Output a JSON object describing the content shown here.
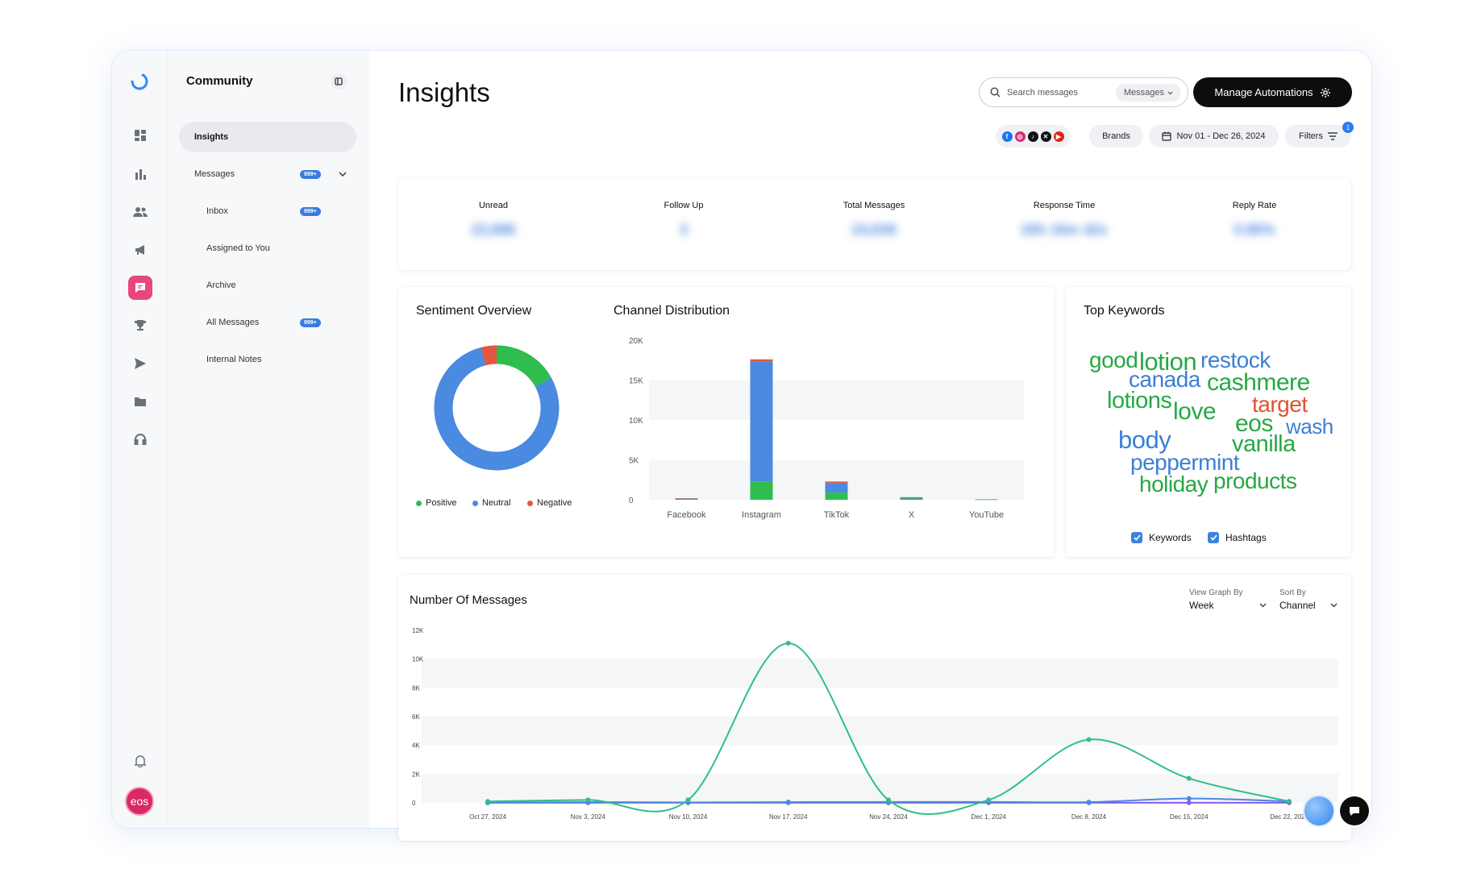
{
  "sidebar": {
    "title": "Community",
    "items": [
      {
        "label": "Insights",
        "active": true
      },
      {
        "label": "Messages",
        "badge": "999+"
      },
      {
        "label": "Inbox",
        "badge": "999+"
      },
      {
        "label": "Assigned to You"
      },
      {
        "label": "Archive"
      },
      {
        "label": "All Messages",
        "badge": "999+"
      },
      {
        "label": "Internal Notes"
      }
    ]
  },
  "rail": {
    "icons": [
      "dashboard-icon",
      "bar-chart-icon",
      "users-icon",
      "megaphone-icon",
      "chat-icon",
      "trophy-icon",
      "send-icon",
      "folder-icon",
      "headset-icon",
      "bell-icon"
    ],
    "avatar_text": "eos",
    "active_color": "#e8477a"
  },
  "header": {
    "title": "Insights",
    "search_placeholder": "Search messages",
    "search_scope": "Messages",
    "manage_label": "Manage Automations",
    "brands_label": "Brands",
    "date_range": "Nov 01 - Dec 26, 2024",
    "filters_label": "Filters",
    "filters_count": "1"
  },
  "stats": [
    {
      "label": "Unread",
      "value": "23,896"
    },
    {
      "label": "Follow Up",
      "value": "3"
    },
    {
      "label": "Total Messages",
      "value": "24,638"
    },
    {
      "label": "Response Time",
      "value": "20h 16m 42s"
    },
    {
      "label": "Reply Rate",
      "value": "0.86%"
    }
  ],
  "sentiment": {
    "title": "Sentiment Overview",
    "legend": [
      "Positive",
      "Neutral",
      "Negative"
    ],
    "colors": {
      "positive": "#2ebd4e",
      "neutral": "#4a8ae0",
      "negative": "#e4553b"
    }
  },
  "channel": {
    "title": "Channel Distribution",
    "y_ticks": [
      "20K",
      "15K",
      "10K",
      "5K",
      "0"
    ]
  },
  "keywords": {
    "title": "Top Keywords",
    "words": [
      {
        "text": "good",
        "color": "#27a844"
      },
      {
        "text": "lotion",
        "color": "#27a844"
      },
      {
        "text": "restock",
        "color": "#3c7fd6"
      },
      {
        "text": "canada",
        "color": "#3c7fd6"
      },
      {
        "text": "cashmere",
        "color": "#27a844"
      },
      {
        "text": "lotions",
        "color": "#27a844"
      },
      {
        "text": "target",
        "color": "#e0522f"
      },
      {
        "text": "love",
        "color": "#27a844"
      },
      {
        "text": "eos",
        "color": "#27a844"
      },
      {
        "text": "wash",
        "color": "#3c7fd6"
      },
      {
        "text": "body",
        "color": "#3c7fd6"
      },
      {
        "text": "vanilla",
        "color": "#27a844"
      },
      {
        "text": "peppermint",
        "color": "#3c7fd6"
      },
      {
        "text": "holiday",
        "color": "#27a844"
      },
      {
        "text": "products",
        "color": "#27a844"
      }
    ],
    "toggles": [
      {
        "label": "Keywords",
        "checked": true
      },
      {
        "label": "Hashtags",
        "checked": true
      }
    ]
  },
  "messages_chart": {
    "title": "Number Of Messages",
    "view_label": "View Graph By",
    "view_value": "Week",
    "sort_label": "Sort By",
    "sort_value": "Channel",
    "y_ticks": [
      "12K",
      "10K",
      "8K",
      "6K",
      "4K",
      "2K",
      "0"
    ]
  },
  "chart_data": [
    {
      "type": "pie",
      "title": "Sentiment Overview",
      "labels": [
        "Positive",
        "Neutral",
        "Negative"
      ],
      "values": [
        17,
        79,
        4
      ],
      "colors": [
        "#2ebd4e",
        "#4a8ae0",
        "#e4553b"
      ]
    },
    {
      "type": "bar",
      "title": "Channel Distribution",
      "categories": [
        "Facebook",
        "Instagram",
        "TikTok",
        "X",
        "YouTube"
      ],
      "ylim": [
        0,
        20000
      ],
      "series": [
        {
          "name": "Positive",
          "color": "#2ebd4e",
          "values": [
            50,
            2300,
            900,
            150,
            20
          ]
        },
        {
          "name": "Neutral",
          "color": "#4a8ae0",
          "values": [
            120,
            15000,
            1200,
            150,
            30
          ]
        },
        {
          "name": "Negative",
          "color": "#e4553b",
          "values": [
            10,
            300,
            180,
            20,
            5
          ]
        }
      ]
    },
    {
      "type": "line",
      "title": "Number Of Messages",
      "x": [
        "Oct 27, 2024",
        "Nov 3, 2024",
        "Nov 10, 2024",
        "Nov 17, 2024",
        "Nov 24, 2024",
        "Dec 1, 2024",
        "Dec 8, 2024",
        "Dec 15, 2024",
        "Dec 22, 2024"
      ],
      "ylim": [
        0,
        12000
      ],
      "series": [
        {
          "color": "#2fbf8a",
          "values": [
            100,
            200,
            200,
            11100,
            200,
            200,
            4400,
            1700,
            100
          ]
        },
        {
          "color": "#4a8ae0",
          "values": [
            10,
            50,
            30,
            50,
            60,
            60,
            50,
            300,
            100
          ]
        },
        {
          "color": "#8a5cf0",
          "values": [
            5,
            10,
            10,
            10,
            10,
            10,
            10,
            10,
            10
          ]
        }
      ]
    }
  ]
}
